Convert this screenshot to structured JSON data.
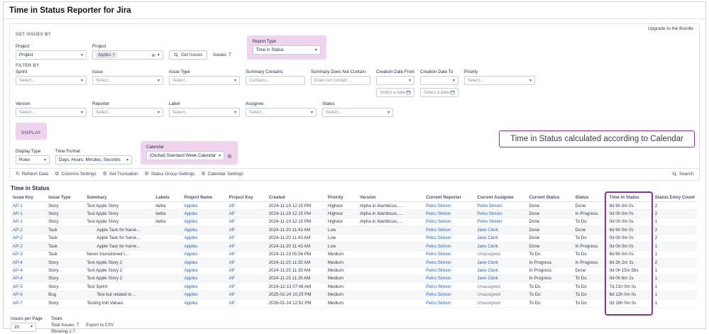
{
  "colors": {
    "highlight_pink": "#f0d3ec",
    "annotation_purple": "#8c2f9b",
    "link_blue": "#1f62c5"
  },
  "icons": {
    "caret_down": "▾",
    "gear": "⚙",
    "refresh": "↻",
    "clear": "⊗",
    "chip_remove": "×"
  },
  "header": {
    "title": "Time in Status Reporter for Jira"
  },
  "panel": {
    "upgrade_link": "Upgrade to the Bundle",
    "section_get_issues": "GET ISSUES BY",
    "get_by": {
      "label": "Project",
      "value": "Project"
    },
    "project_field": {
      "label": "Project",
      "chip": "Apples"
    },
    "get_issues_button": "Get Issues",
    "issues_count": "Issues: 7",
    "report_type": {
      "label": "Report Type",
      "value": "Time in Status"
    },
    "section_filter": "FILTER BY",
    "filters_row1": [
      {
        "label": "Sprint",
        "value": "Select..."
      },
      {
        "label": "Issue",
        "value": "Select..."
      },
      {
        "label": "Issue Type",
        "value": "Select..."
      },
      {
        "label": "Summary Contains",
        "placeholder": "Contains..."
      },
      {
        "label": "Summary Does Not Contain",
        "placeholder": "Does not contain..."
      },
      {
        "label": "Creation Date From",
        "date_placeholder": "Select a date"
      },
      {
        "label": "Creation Date To",
        "date_placeholder": "Select a date"
      },
      {
        "label": "Priority",
        "value": "Select..."
      }
    ],
    "filters_row2": [
      {
        "label": "Version",
        "value": "Select..."
      },
      {
        "label": "Reporter",
        "value": "Select..."
      },
      {
        "label": "Label",
        "value": "Select..."
      },
      {
        "label": "Assignee",
        "value": "Select..."
      },
      {
        "label": "Status",
        "value": "Select..."
      }
    ],
    "section_display": "DISPLAY",
    "display_type": {
      "label": "Display Type",
      "value": "Rows"
    },
    "time_format": {
      "label": "Time Format",
      "value": "Days, Hours, Minutes, Seconds"
    },
    "calendar": {
      "label": "Calendar",
      "value": "(Global) Standard Week Calendar"
    },
    "callout": "Time in Status calculated according to Calendar",
    "toolbar": [
      {
        "label": "Refresh Data"
      },
      {
        "label": "Columns Settings"
      },
      {
        "label": "Set Truncation"
      },
      {
        "label": "Status Group Settings"
      },
      {
        "label": "Calendar Settings"
      }
    ],
    "search_button": "Search"
  },
  "table": {
    "title": "Time in Status",
    "columns": [
      "Issue Key",
      "Issue Type",
      "Summary",
      "Labels",
      "Project Name",
      "Project Key",
      "Created",
      "Priority",
      "Version",
      "Current Reporter",
      "Current Assignee",
      "Current Status",
      "Status",
      "Time in Status",
      "Status Entry Count"
    ],
    "column_keys": [
      "issue-key",
      "issue-type",
      "summary",
      "labels",
      "project-name",
      "project-key",
      "created",
      "priority",
      "version",
      "current-reporter",
      "current-assignee",
      "current-status",
      "status",
      "time-in-status",
      "status-entry-count"
    ],
    "link_columns": [
      0,
      4,
      5,
      9,
      10
    ],
    "rows": [
      {
        "cells": [
          "AP-1",
          "Story",
          "Test Apple Story",
          "betta",
          "Apples",
          "AP",
          "2024-11-19 12:15 PM",
          "Highest",
          "Alpha in Alambicus, ...",
          "Petru Simion",
          "Petru Simion",
          "Done",
          "Done",
          "8d 6h 0m 0s",
          "2"
        ]
      },
      {
        "cells": [
          "AP-1",
          "Story",
          "Test Apple Story",
          "betta",
          "Apples",
          "AP",
          "2024-11-19 12:15 PM",
          "Highest",
          "Alpha in Alambicus, ...",
          "Petru Simion",
          "Petru Simion",
          "Done",
          "In Progress",
          "0d 0h 0m 0s",
          "2"
        ]
      },
      {
        "cells": [
          "AP-1",
          "Story",
          "Test Apple Story",
          "betta",
          "Apples",
          "AP",
          "2024-11-19 12:15 PM",
          "Highest",
          "Alpha in Alambicus, ...",
          "Petru Simion",
          "Petru Simion",
          "Done",
          "To Do",
          "0d 0h 0m 0s",
          "1"
        ]
      },
      {
        "cells": [
          "AP-2",
          "Task",
          "Apple Task for harve...",
          "",
          "Apples",
          "AP",
          "2024-11-20 11:43 AM",
          "Low",
          "",
          "Petru Simion",
          "Jane Clerk",
          "Done",
          "Done",
          "8d 6h 0m 0s",
          "2"
        ],
        "indent": true
      },
      {
        "cells": [
          "AP-2",
          "Task",
          "Apple Task for harve...",
          "",
          "Apples",
          "AP",
          "2024-11-20 11:43 AM",
          "Low",
          "",
          "Petru Simion",
          "Jane Clerk",
          "Done",
          "To Do",
          "0d 0h 0m 0s",
          "2"
        ],
        "indent": true
      },
      {
        "cells": [
          "AP-2",
          "Task",
          "Apple Task for harve...",
          "",
          "Apples",
          "AP",
          "2024-11-20 11:43 AM",
          "Low",
          "",
          "Petru Simion",
          "Jane Clerk",
          "Done",
          "In Progress",
          "0d 0h 0m 0s",
          "1"
        ],
        "indent": true
      },
      {
        "cells": [
          "AP-3",
          "Task",
          "Never transitioned t...",
          "",
          "Apples",
          "AP",
          "2024-11-23 05:56 PM",
          "Medium",
          "",
          "Petru Simion",
          "Unassigned",
          "To Do",
          "To Do",
          "8d 6h 0m 0s",
          "1"
        ]
      },
      {
        "cells": [
          "AP-4",
          "Story",
          "Test Apple Story 2",
          "",
          "Apples",
          "AP",
          "2024-11-25 11:35 AM",
          "Medium",
          "",
          "Petru Simion",
          "Jane Clerk",
          "In Progress",
          "In Progress",
          "8d 3h 2m 3s",
          "2"
        ]
      },
      {
        "cells": [
          "AP-4",
          "Story",
          "Test Apple Story 2",
          "",
          "Apples",
          "AP",
          "2024-11-25 11:35 AM",
          "Medium",
          "",
          "Petru Simion",
          "Jane Clerk",
          "In Progress",
          "Done",
          "0d 0h 15m 56s",
          "1"
        ]
      },
      {
        "cells": [
          "AP-4",
          "Story",
          "Test Apple Story 2",
          "",
          "Apples",
          "AP",
          "2024-11-25 11:35 AM",
          "Medium",
          "",
          "Petru Simion",
          "Jane Clerk",
          "In Progress",
          "To Do",
          "0d 0h 6m 2s",
          "1"
        ]
      },
      {
        "cells": [
          "AP-5",
          "Story",
          "Test Sprint",
          "",
          "Apples",
          "AP",
          "2024-12-13 07:48 AM",
          "Medium",
          "",
          "Petru Simion",
          "Unassigned",
          "To Do",
          "To Do",
          "7d 21h 0m 0s",
          "1"
        ]
      },
      {
        "cells": [
          "AP-6",
          "Bug",
          "Test but related to ...",
          "",
          "Apples",
          "AP",
          "2025-02-24 10:25 PM",
          "Medium",
          "",
          "Petru Simion",
          "Unassigned",
          "To Do",
          "To Do",
          "6d 12h 0m 0s",
          "1"
        ],
        "indent": true
      },
      {
        "cells": [
          "AP-7",
          "Story",
          "Testing Initi Values",
          "",
          "Apples",
          "AP",
          "2026-01-14 12:52 PM",
          "Medium",
          "",
          "Petru Simion",
          "Unassigned",
          "To Do",
          "To Do",
          "0d 18h 0m 0s",
          "1"
        ]
      }
    ]
  },
  "footer": {
    "issues_per_page_label": "Issues per Page",
    "issues_per_page_value": "20",
    "totals_label": "Totals",
    "total_issues": "Total Issues: 7",
    "export_csv": "Export to CSV",
    "showing": "Showing 1-7"
  }
}
